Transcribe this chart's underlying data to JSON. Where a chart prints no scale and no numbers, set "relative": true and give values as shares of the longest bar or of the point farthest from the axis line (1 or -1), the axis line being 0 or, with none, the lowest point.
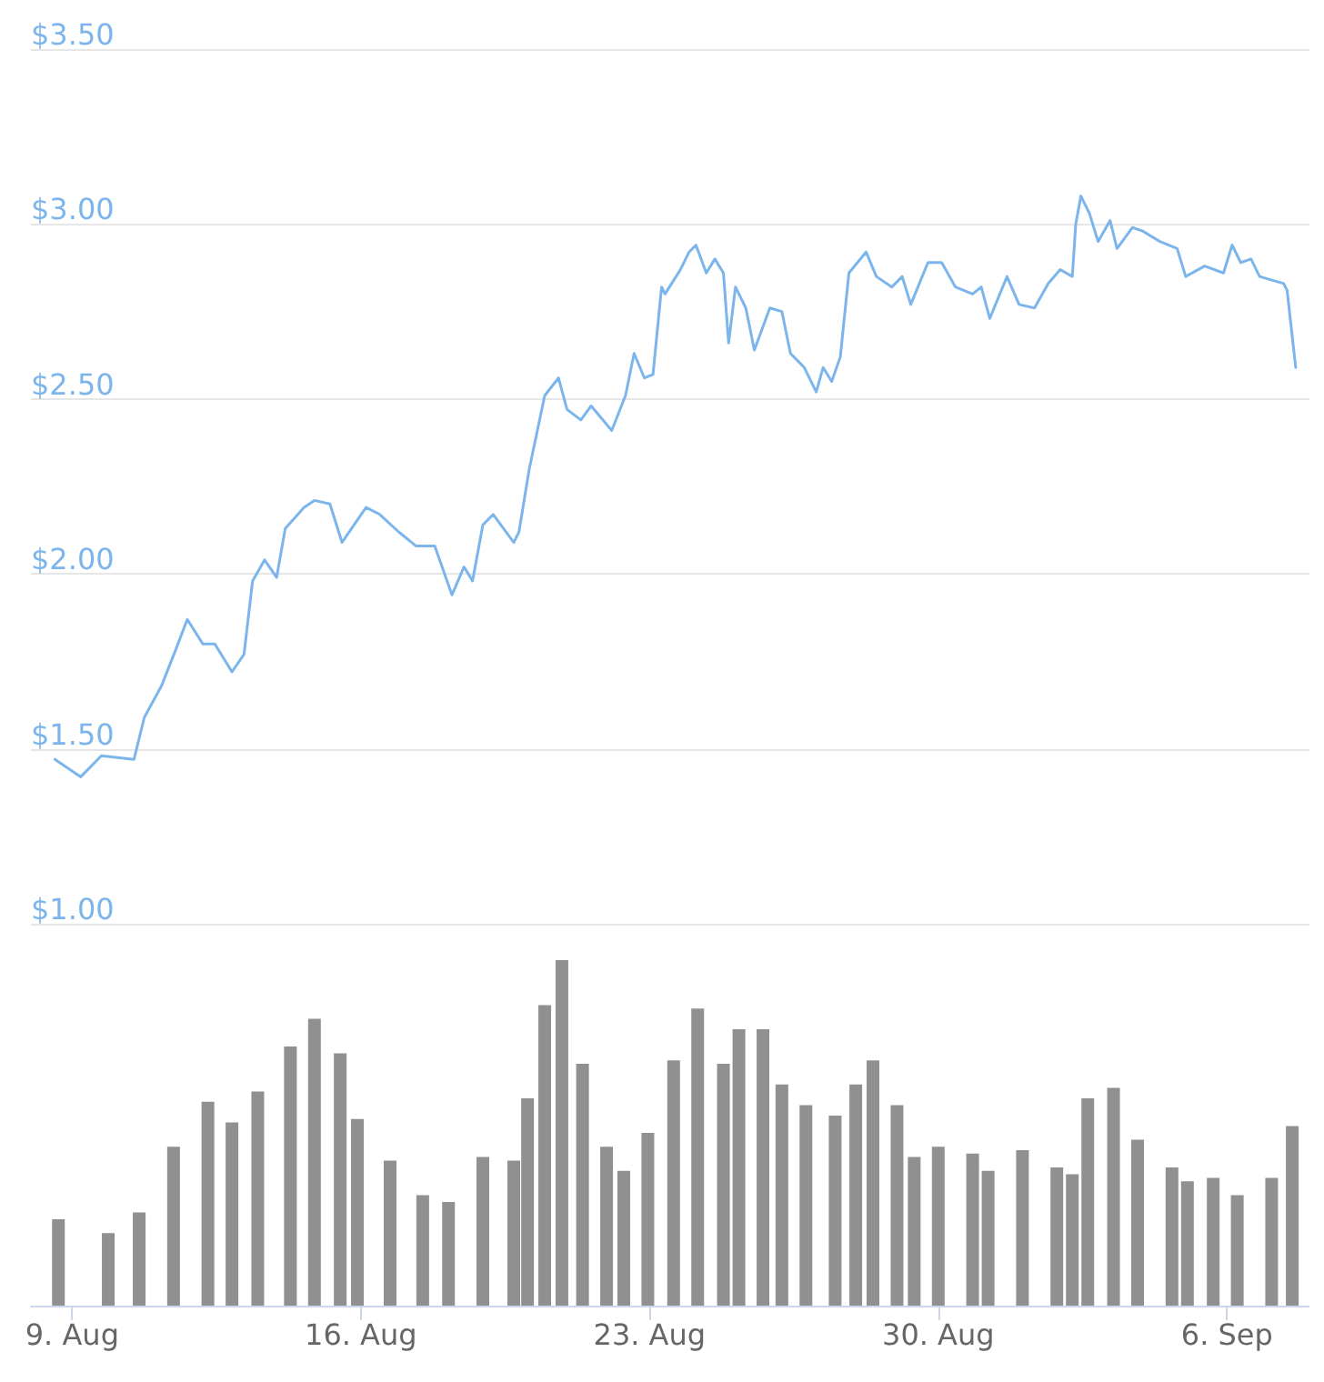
{
  "chart_data": [
    {
      "type": "line",
      "xlim": [
        "--08-08",
        "--09-08"
      ],
      "ylim": [
        1,
        3.5
      ],
      "yticks": [
        {
          "value": 1,
          "label": "$1.00"
        },
        {
          "value": 1.5,
          "label": "$1.50"
        },
        {
          "value": 2,
          "label": "$2.00"
        },
        {
          "value": 2.5,
          "label": "$2.50"
        },
        {
          "value": 3,
          "label": "$3.00"
        },
        {
          "value": 3.5,
          "label": "$3.50"
        }
      ],
      "grid": "y",
      "tick_labels": "y",
      "series": [
        {
          "color": "#7cb5ec",
          "x": [
            "--08-08T14:00",
            "--08-09T05:00",
            "--08-09T17:00",
            "--08-10T12:00",
            "--08-10T18:00",
            "--08-11T04:00",
            "--08-11T12:00",
            "--08-11T19:00",
            "--08-12T04:00",
            "--08-12T11:00",
            "--08-12T21:00",
            "--08-13T04:00",
            "--08-13T09:00",
            "--08-13T16:00",
            "--08-13T23:00",
            "--08-14T04:00",
            "--08-14T15:00",
            "--08-14T21:00",
            "--08-15T06:00",
            "--08-15T13:00",
            "--08-16T03:00",
            "--08-16T11:00",
            "--08-16T22:00",
            "--08-17T08:00",
            "--08-17T19:00",
            "--08-18T05:00",
            "--08-18T12:00",
            "--08-18T17:00",
            "--08-18T23:00",
            "--08-19T05:00",
            "--08-19T17:00",
            "--08-19T20:00",
            "--08-20T02:00",
            "--08-20T11:00",
            "--08-20T19:00",
            "--08-21T00:00",
            "--08-21T08:00",
            "--08-21T14:00",
            "--08-22T02:00",
            "--08-22T10:00",
            "--08-22T15:00",
            "--08-22T21:00",
            "--08-23T02:00",
            "--08-23T07:00",
            "--08-23T09:00",
            "--08-23T18:00",
            "--08-23T23:00",
            "--08-24T03:00",
            "--08-24T09:00",
            "--08-24T14:00",
            "--08-24T19:00",
            "--08-24T22:00",
            "--08-25T02:00",
            "--08-25T08:00",
            "--08-25T13:00",
            "--08-25T22:00",
            "--08-26T05:00",
            "--08-26T10:00",
            "--08-26T18:00",
            "--08-27T01:00",
            "--08-27T05:00",
            "--08-27T10:00",
            "--08-27T15:00",
            "--08-27T20:00",
            "--08-28T06:00",
            "--08-28T12:00",
            "--08-28T21:00",
            "--08-29T03:00",
            "--08-29T08:00",
            "--08-29T18:00",
            "--08-30T02:00",
            "--08-30T10:00",
            "--08-30T20:00",
            "--08-31T01:00",
            "--08-31T06:00",
            "--08-31T16:00",
            "--08-31T23:00",
            "--09-01T08:00",
            "--09-01T16:00",
            "--09-01T23:00",
            "--09-02T06:00",
            "--09-02T08:00",
            "--09-02T11:00",
            "--09-02T16:00",
            "--09-02T21:00",
            "--09-03T04:00",
            "--09-03T08:00",
            "--09-03T17:00",
            "--09-03T23:00",
            "--09-04T09:00",
            "--09-04T19:00",
            "--09-05T00:00",
            "--09-05T11:00",
            "--09-05T22:00",
            "--09-06T03:00",
            "--09-06T08:00",
            "--09-06T14:00",
            "--09-06T19:00",
            "--09-07T09:00",
            "--09-07T11:00",
            "--09-07T16:00"
          ],
          "values": [
            1.47,
            1.42,
            1.48,
            1.47,
            1.59,
            1.68,
            1.78,
            1.87,
            1.8,
            1.8,
            1.72,
            1.77,
            1.98,
            2.04,
            1.99,
            2.13,
            2.19,
            2.21,
            2.2,
            2.09,
            2.19,
            2.17,
            2.12,
            2.08,
            2.08,
            1.94,
            2.02,
            1.98,
            2.14,
            2.17,
            2.09,
            2.12,
            2.3,
            2.51,
            2.56,
            2.47,
            2.44,
            2.48,
            2.41,
            2.51,
            2.63,
            2.56,
            2.57,
            2.82,
            2.8,
            2.87,
            2.92,
            2.94,
            2.86,
            2.9,
            2.86,
            2.66,
            2.82,
            2.76,
            2.64,
            2.76,
            2.75,
            2.63,
            2.59,
            2.52,
            2.59,
            2.55,
            2.62,
            2.86,
            2.92,
            2.85,
            2.82,
            2.85,
            2.77,
            2.89,
            2.89,
            2.82,
            2.8,
            2.82,
            2.73,
            2.85,
            2.77,
            2.76,
            2.83,
            2.87,
            2.85,
            3.0,
            3.08,
            3.03,
            2.95,
            3.01,
            2.93,
            2.99,
            2.98,
            2.95,
            2.93,
            2.85,
            2.88,
            2.86,
            2.94,
            2.89,
            2.9,
            2.85,
            2.83,
            2.81,
            2.59
          ]
        }
      ]
    },
    {
      "type": "bar",
      "relative": true,
      "xlim": [
        "--08-08",
        "--09-08"
      ],
      "xticks": [
        {
          "value": "--08-09",
          "label": "9. Aug"
        },
        {
          "value": "--08-16",
          "label": "16. Aug"
        },
        {
          "value": "--08-23",
          "label": "23. Aug"
        },
        {
          "value": "--08-30",
          "label": "30. Aug"
        },
        {
          "value": "--09-06",
          "label": "6. Sep"
        }
      ],
      "tick_labels": "x",
      "grid": false,
      "series": [
        {
          "color": "#909090",
          "x": [
            "--08-08T16:00",
            "--08-09T21:00",
            "--08-10T15:00",
            "--08-11T11:00",
            "--08-12T07:00",
            "--08-12T21:00",
            "--08-13T12:00",
            "--08-14T07:00",
            "--08-14T21:00",
            "--08-15T12:00",
            "--08-15T22:00",
            "--08-16T17:00",
            "--08-17T12:00",
            "--08-18T03:00",
            "--08-18T23:00",
            "--08-19T17:00",
            "--08-20T01:00",
            "--08-20T11:00",
            "--08-20T21:00",
            "--08-21T09:00",
            "--08-21T23:00",
            "--08-22T09:00",
            "--08-22T23:00",
            "--08-23T14:00",
            "--08-24T04:00",
            "--08-24T19:00",
            "--08-25T04:00",
            "--08-25T18:00",
            "--08-26T05:00",
            "--08-26T19:00",
            "--08-27T12:00",
            "--08-28T00:00",
            "--08-28T10:00",
            "--08-29T00:00",
            "--08-29T10:00",
            "--08-30T00:00",
            "--08-30T20:00",
            "--08-31T05:00",
            "--09-01T01:00",
            "--09-01T21:00",
            "--09-02T06:00",
            "--09-02T15:00",
            "--09-03T06:00",
            "--09-03T20:00",
            "--09-04T16:00",
            "--09-05T01:00",
            "--09-05T16:00",
            "--09-06T06:00",
            "--09-07T02:00",
            "--09-07T14:00"
          ],
          "values": [
            0.25,
            0.21,
            0.27,
            0.46,
            0.59,
            0.53,
            0.62,
            0.75,
            0.83,
            0.73,
            0.54,
            0.42,
            0.32,
            0.3,
            0.43,
            0.42,
            0.6,
            0.87,
            1.0,
            0.7,
            0.46,
            0.39,
            0.5,
            0.71,
            0.86,
            0.7,
            0.8,
            0.8,
            0.64,
            0.58,
            0.55,
            0.64,
            0.71,
            0.58,
            0.43,
            0.46,
            0.44,
            0.39,
            0.45,
            0.4,
            0.38,
            0.6,
            0.63,
            0.48,
            0.4,
            0.36,
            0.37,
            0.32,
            0.37,
            0.52
          ]
        }
      ]
    }
  ]
}
